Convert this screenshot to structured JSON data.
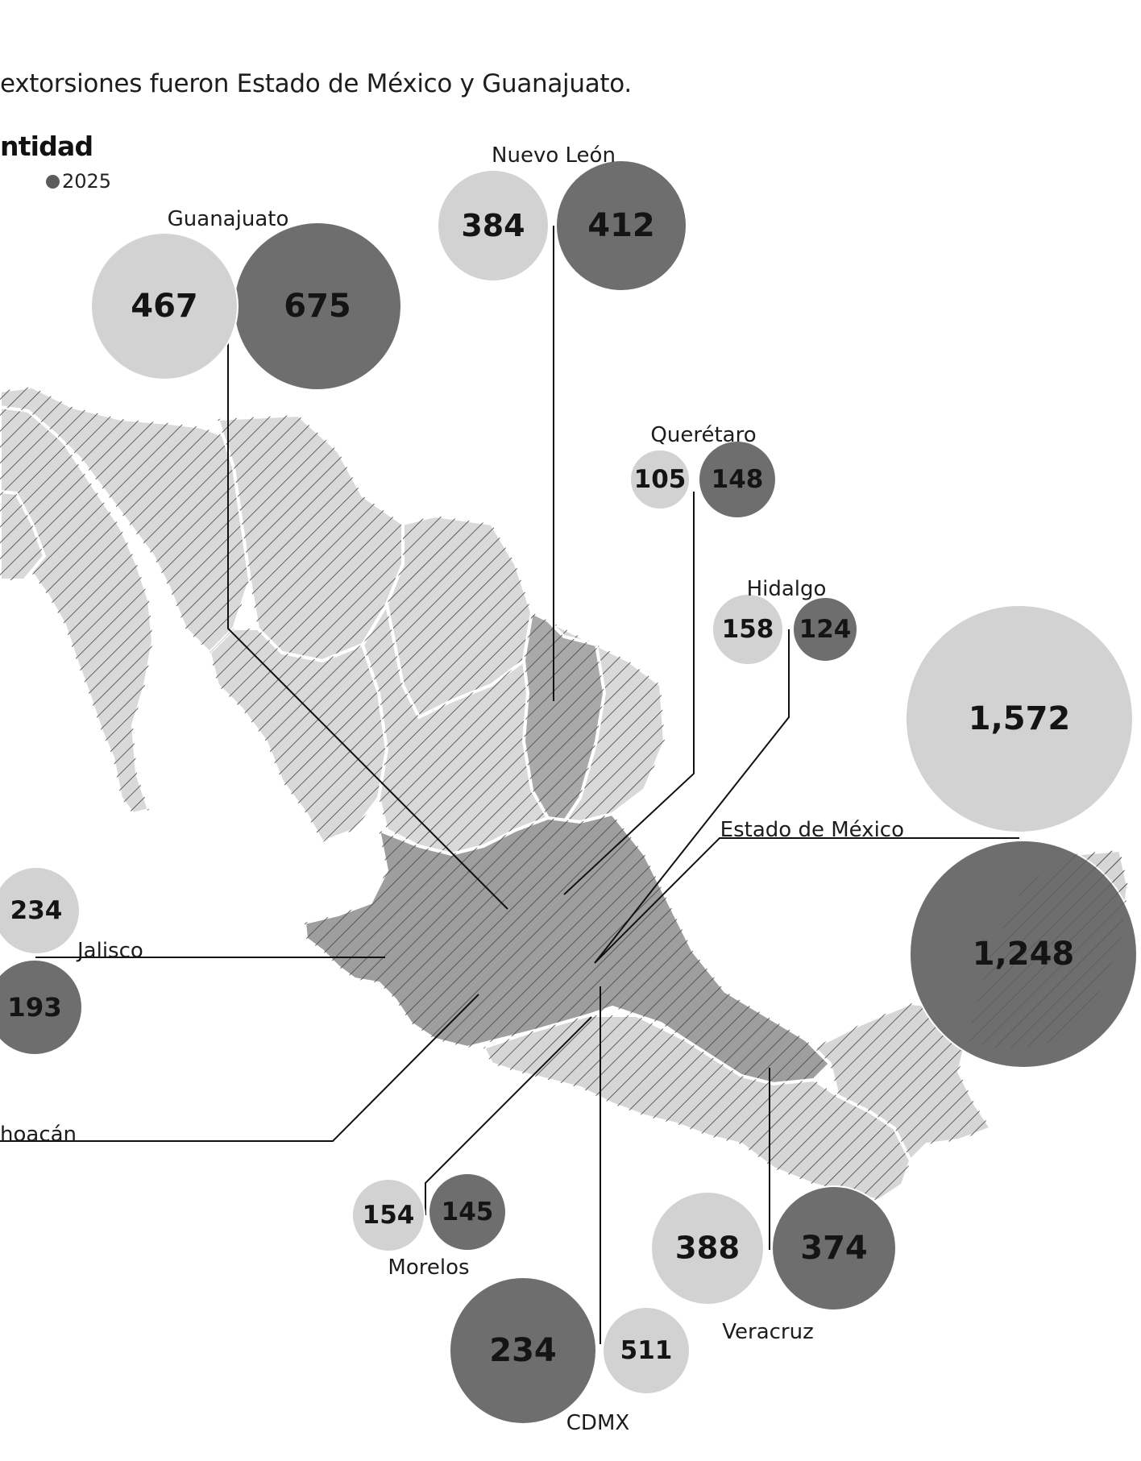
{
  "subtitle": "extorsiones fueron Estado de México y Guanajuato.",
  "legend": {
    "title": "ntidad",
    "item_2025": "2025"
  },
  "colors": {
    "prev_year": "#d2d2d2",
    "year_2025": "#6e6e6e",
    "map_light": "#d9d9d9",
    "map_mid": "#c4c4c4",
    "map_dark": "#9e9e9e",
    "hatch": "#4a4a4a"
  },
  "states": [
    {
      "name": "Guanajuato",
      "prev": "467",
      "current": "675"
    },
    {
      "name": "Nuevo León",
      "prev": "384",
      "current": "412"
    },
    {
      "name": "Querétaro",
      "prev": "105",
      "current": "148"
    },
    {
      "name": "Hidalgo",
      "prev": "158",
      "current": "124"
    },
    {
      "name": "Estado de México",
      "prev": "1,572",
      "current": "1,248"
    },
    {
      "name": "Jalisco",
      "prev": "234",
      "current": "193"
    },
    {
      "name": "hoacán",
      "prev": "",
      "current": ""
    },
    {
      "name": "Morelos",
      "prev": "154",
      "current": "145"
    },
    {
      "name": "Veracruz",
      "prev": "388",
      "current": "374"
    },
    {
      "name": "CDMX",
      "prev": "511",
      "current": "234"
    }
  ]
}
